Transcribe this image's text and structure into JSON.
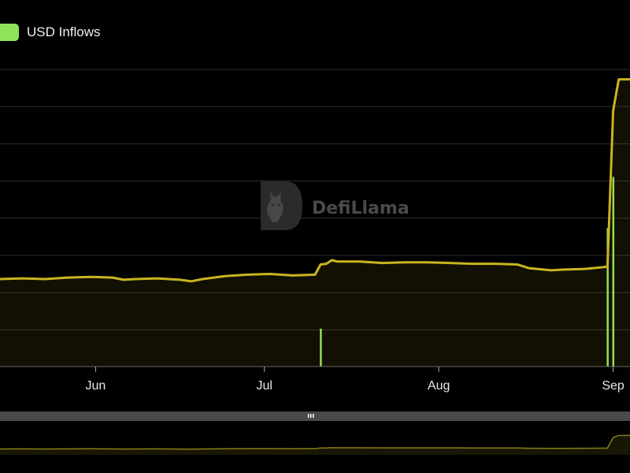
{
  "legend": {
    "label": "USD Inflows",
    "color": "#8fe35a"
  },
  "watermark": {
    "text": "DefiLlama",
    "logo": "defillama-logo-icon"
  },
  "colors": {
    "line": "#c9b520",
    "bars": "#8fe35a",
    "grid": "#2e2e2e",
    "background": "#000000"
  },
  "chart_data": {
    "type": "line",
    "grid": true,
    "legend_position": "top-left",
    "x_ticks": [
      "Jun",
      "Jul",
      "Aug",
      "Sep"
    ],
    "x_tick_days": [
      31,
      61,
      92,
      123
    ],
    "x_domain_days": [
      14,
      126
    ],
    "series": [
      {
        "type": "area",
        "points": [
          [
            14,
            6.0
          ],
          [
            18,
            6.05
          ],
          [
            22,
            6.0
          ],
          [
            26,
            6.1
          ],
          [
            30,
            6.15
          ],
          [
            34,
            6.1
          ],
          [
            36,
            5.95
          ],
          [
            38,
            6.0
          ],
          [
            42,
            6.05
          ],
          [
            46,
            5.95
          ],
          [
            48,
            5.85
          ],
          [
            50,
            6.0
          ],
          [
            54,
            6.2
          ],
          [
            58,
            6.3
          ],
          [
            62,
            6.35
          ],
          [
            66,
            6.25
          ],
          [
            70,
            6.3
          ],
          [
            71,
            7.0
          ],
          [
            72,
            7.05
          ],
          [
            73,
            7.3
          ],
          [
            74,
            7.2
          ],
          [
            78,
            7.2
          ],
          [
            82,
            7.1
          ],
          [
            86,
            7.15
          ],
          [
            90,
            7.15
          ],
          [
            94,
            7.1
          ],
          [
            98,
            7.05
          ],
          [
            102,
            7.05
          ],
          [
            106,
            7.0
          ],
          [
            108,
            6.75
          ],
          [
            112,
            6.6
          ],
          [
            114,
            6.65
          ],
          [
            118,
            6.7
          ],
          [
            122,
            6.85
          ],
          [
            123,
            17.55
          ],
          [
            124,
            19.7
          ],
          [
            125,
            19.7
          ],
          [
            126,
            19.7
          ]
        ]
      },
      {
        "type": "bar",
        "points": [
          [
            71,
            2.6
          ],
          [
            122,
            9.5
          ],
          [
            123,
            13.0
          ]
        ]
      }
    ]
  }
}
